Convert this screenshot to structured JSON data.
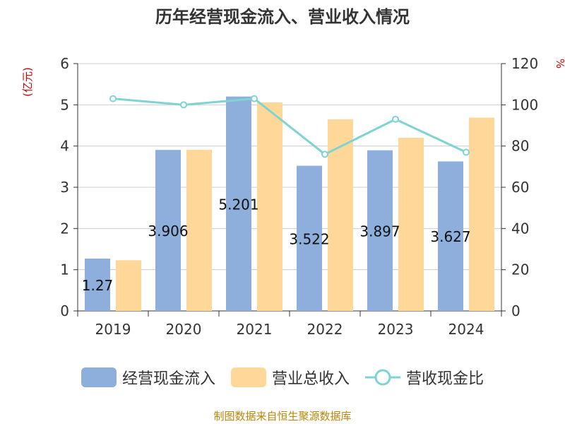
{
  "chart_data": {
    "type": "bar",
    "title": "历年经营现金流入、营业收入情况",
    "categories": [
      "2019",
      "2020",
      "2021",
      "2022",
      "2023",
      "2024"
    ],
    "y_left": {
      "unit_label": "(亿元)",
      "ylim": [
        0,
        6
      ],
      "ticks": [
        "0",
        "1",
        "2",
        "3",
        "4",
        "5",
        "6"
      ]
    },
    "y_right": {
      "unit_label": "%",
      "ylim": [
        0,
        120
      ],
      "ticks": [
        "0",
        "20",
        "40",
        "60",
        "80",
        "100",
        "120"
      ]
    },
    "series": [
      {
        "name": "经营现金流入",
        "type": "bar",
        "axis": "left",
        "color": "#8eaedc",
        "values": [
          1.27,
          3.906,
          5.201,
          3.522,
          3.897,
          3.627
        ],
        "data_labels": [
          "1.27",
          "3.906",
          "5.201",
          "3.522",
          "3.897",
          "3.627"
        ]
      },
      {
        "name": "营业总收入",
        "type": "bar",
        "axis": "left",
        "color": "#ffd899",
        "values": [
          1.23,
          3.91,
          5.06,
          4.65,
          4.2,
          4.69
        ]
      },
      {
        "name": "营收现金比",
        "type": "line",
        "axis": "right",
        "color": "#7fd3d3",
        "values": [
          103,
          100,
          103,
          76,
          93,
          77
        ]
      }
    ],
    "grid": true,
    "legend_position": "bottom"
  },
  "source_note": "制图数据来自恒生聚源数据库"
}
